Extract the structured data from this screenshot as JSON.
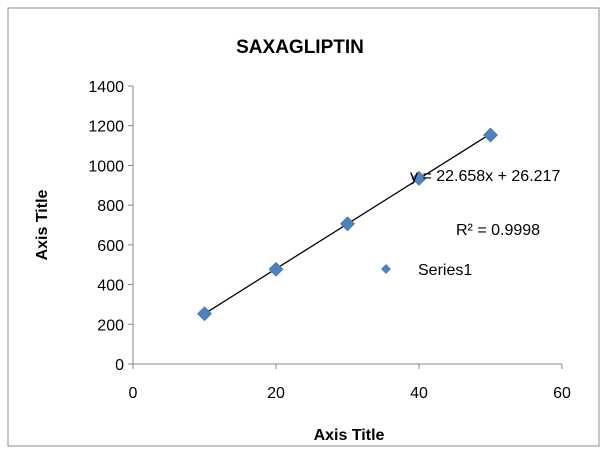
{
  "chart_data": {
    "type": "scatter",
    "title": "SAXAGLIPTIN",
    "xlabel": "Axis Title",
    "ylabel": "Axis Title",
    "xlim": [
      0,
      60
    ],
    "ylim": [
      0,
      1400
    ],
    "xticks": [
      "0",
      "20",
      "40",
      "60"
    ],
    "yticks": [
      "0",
      "200",
      "400",
      "600",
      "800",
      "1000",
      "1200",
      "1400"
    ],
    "grid": false,
    "legend_position": "right",
    "series": [
      {
        "name": "Series1",
        "color": "#4F81BD",
        "x": [
          10,
          20,
          30,
          40,
          50
        ],
        "y": [
          253,
          477,
          706,
          935,
          1153
        ]
      }
    ],
    "trendline": {
      "type": "linear",
      "slope": 22.658,
      "intercept": 26.217,
      "color": "#000000",
      "equation": "y = 22.658x + 26.217",
      "r_squared": "R² = 0.9998"
    }
  }
}
